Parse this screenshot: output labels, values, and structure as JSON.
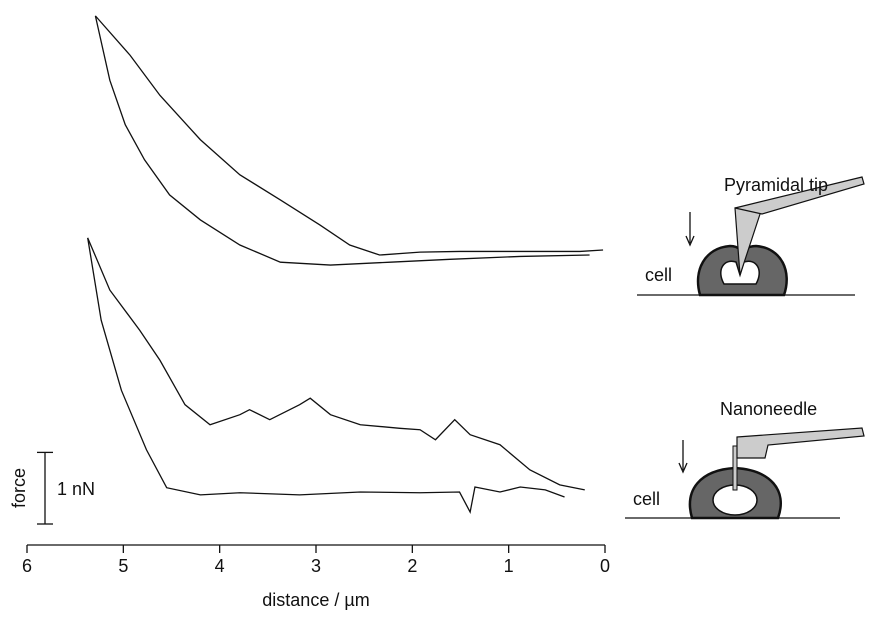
{
  "chart_data": {
    "type": "line",
    "xlabel": "distance / µm",
    "xlim": [
      6,
      0
    ],
    "xticks": [
      6,
      5,
      4,
      3,
      2,
      1,
      0
    ],
    "ylim": [
      0,
      7.5
    ],
    "ylabel": "force",
    "scale_bar": {
      "value": 1,
      "label": "1 nN"
    },
    "color": "#111111",
    "series": [
      {
        "x": [
          5.29,
          4.93,
          4.62,
          4.2,
          3.79,
          3.37,
          2.96,
          2.65,
          2.34,
          1.92,
          1.51,
          1.09,
          0.67,
          0.26,
          0.02
        ],
        "values": [
          7.39,
          6.84,
          6.28,
          5.66,
          5.17,
          4.82,
          4.47,
          4.19,
          4.05,
          4.09,
          4.1,
          4.1,
          4.1,
          4.1,
          4.12
        ]
      },
      {
        "x": [
          5.29,
          5.14,
          4.98,
          4.78,
          4.52,
          4.2,
          3.79,
          3.37,
          2.85,
          2.23,
          1.61,
          0.88,
          0.16
        ],
        "values": [
          7.39,
          6.49,
          5.87,
          5.38,
          4.89,
          4.54,
          4.19,
          3.95,
          3.91,
          3.95,
          3.99,
          4.03,
          4.05
        ]
      },
      {
        "x": [
          5.37,
          5.14,
          4.83,
          4.62,
          4.36,
          4.1,
          3.79,
          3.69,
          3.48,
          3.17,
          3.06,
          2.85,
          2.54,
          2.13,
          1.92,
          1.76,
          1.56,
          1.4,
          1.09,
          0.78,
          0.47,
          0.21
        ],
        "values": [
          4.29,
          3.56,
          3.0,
          2.58,
          1.96,
          1.68,
          1.82,
          1.89,
          1.75,
          1.96,
          2.05,
          1.82,
          1.68,
          1.63,
          1.61,
          1.47,
          1.75,
          1.54,
          1.4,
          1.05,
          0.84,
          0.77
        ]
      },
      {
        "x": [
          5.37,
          5.23,
          5.02,
          4.76,
          4.55,
          4.2,
          3.79,
          3.17,
          2.54,
          1.92,
          1.51,
          1.4,
          1.35,
          1.09,
          0.88,
          0.62,
          0.42
        ],
        "values": [
          4.29,
          3.14,
          2.16,
          1.33,
          0.8,
          0.7,
          0.73,
          0.7,
          0.74,
          0.73,
          0.74,
          0.46,
          0.81,
          0.74,
          0.81,
          0.77,
          0.67
        ]
      }
    ],
    "annotations": [
      "Pyramidal tip",
      "cell",
      "Nanoneedle",
      "cell"
    ]
  }
}
